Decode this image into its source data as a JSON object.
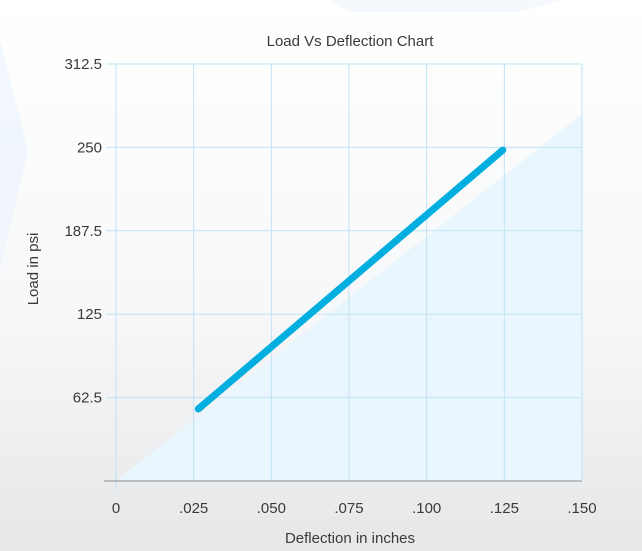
{
  "chart_data": {
    "type": "line",
    "title": "Load Vs Deflection Chart",
    "xlabel": "Deflection in inches",
    "ylabel": "Load in psi",
    "x_ticks": [
      0,
      0.025,
      0.05,
      0.075,
      0.1,
      0.125,
      0.15
    ],
    "x_tick_labels": [
      "0",
      ".025",
      ".050",
      ".075",
      ".100",
      ".125",
      ".150"
    ],
    "y_ticks": [
      62.5,
      125,
      187.5,
      250,
      312.5
    ],
    "y_tick_labels": [
      "62.5",
      "125",
      "187.5",
      "250",
      "312.5"
    ],
    "xlim": [
      0,
      0.15
    ],
    "ylim": [
      0,
      312.5
    ],
    "grid": true,
    "series": [
      {
        "x": [
          0.0265,
          0.1245
        ],
        "y": [
          54,
          248
        ]
      }
    ]
  },
  "colors": {
    "line": "#00aee0",
    "grid": "#bfe3f4",
    "axis": "#8c8c8c",
    "fill": "#eaf6fd"
  }
}
